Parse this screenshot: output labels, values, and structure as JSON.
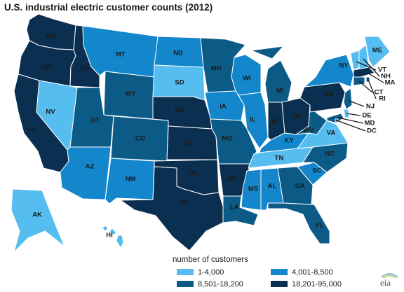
{
  "title": "U.S. industrial electric customer counts (2012)",
  "legend": {
    "title": "number of customers",
    "items": [
      {
        "label": "1-4,000",
        "color": "#56bdf0"
      },
      {
        "label": "4,001-8,500",
        "color": "#1386cc"
      },
      {
        "label": "8,501-18,200",
        "color": "#0c5b86"
      },
      {
        "label": "18,201-95,000",
        "color": "#0b2f51"
      }
    ]
  },
  "logo": {
    "text": "eia"
  },
  "states": [
    {
      "code": "WA",
      "class": 3
    },
    {
      "code": "OR",
      "class": 3
    },
    {
      "code": "CA",
      "class": 3
    },
    {
      "code": "ID",
      "class": 3
    },
    {
      "code": "NV",
      "class": 0
    },
    {
      "code": "MT",
      "class": 1
    },
    {
      "code": "WY",
      "class": 2
    },
    {
      "code": "UT",
      "class": 2
    },
    {
      "code": "AZ",
      "class": 1
    },
    {
      "code": "CO",
      "class": 2
    },
    {
      "code": "NM",
      "class": 1
    },
    {
      "code": "ND",
      "class": 1
    },
    {
      "code": "SD",
      "class": 0
    },
    {
      "code": "NE",
      "class": 3
    },
    {
      "code": "KS",
      "class": 3
    },
    {
      "code": "OK",
      "class": 3
    },
    {
      "code": "TX",
      "class": 3
    },
    {
      "code": "MN",
      "class": 2
    },
    {
      "code": "IA",
      "class": 1
    },
    {
      "code": "MO",
      "class": 2
    },
    {
      "code": "AR",
      "class": 3
    },
    {
      "code": "LA",
      "class": 2
    },
    {
      "code": "WI",
      "class": 1
    },
    {
      "code": "IL",
      "class": 1
    },
    {
      "code": "MI",
      "class": 2
    },
    {
      "code": "IN",
      "class": 3
    },
    {
      "code": "OH",
      "class": 3
    },
    {
      "code": "KY",
      "class": 1
    },
    {
      "code": "TN",
      "class": 0
    },
    {
      "code": "MS",
      "class": 1
    },
    {
      "code": "AL",
      "class": 1
    },
    {
      "code": "GA",
      "class": 2
    },
    {
      "code": "FL",
      "class": 2
    },
    {
      "code": "SC",
      "class": 1
    },
    {
      "code": "NC",
      "class": 2
    },
    {
      "code": "VA",
      "class": 0
    },
    {
      "code": "WV",
      "class": 2
    },
    {
      "code": "PA",
      "class": 3
    },
    {
      "code": "NY",
      "class": 1
    },
    {
      "code": "ME",
      "class": 0
    },
    {
      "code": "VT",
      "class": 0
    },
    {
      "code": "NH",
      "class": 0
    },
    {
      "code": "MA",
      "class": 3
    },
    {
      "code": "RI",
      "class": 2
    },
    {
      "code": "CT",
      "class": 2
    },
    {
      "code": "NJ",
      "class": 2
    },
    {
      "code": "DE",
      "class": 0
    },
    {
      "code": "MD",
      "class": 2
    },
    {
      "code": "DC",
      "class": 3
    },
    {
      "code": "AK",
      "class": 0
    },
    {
      "code": "HI",
      "class": 0
    }
  ]
}
